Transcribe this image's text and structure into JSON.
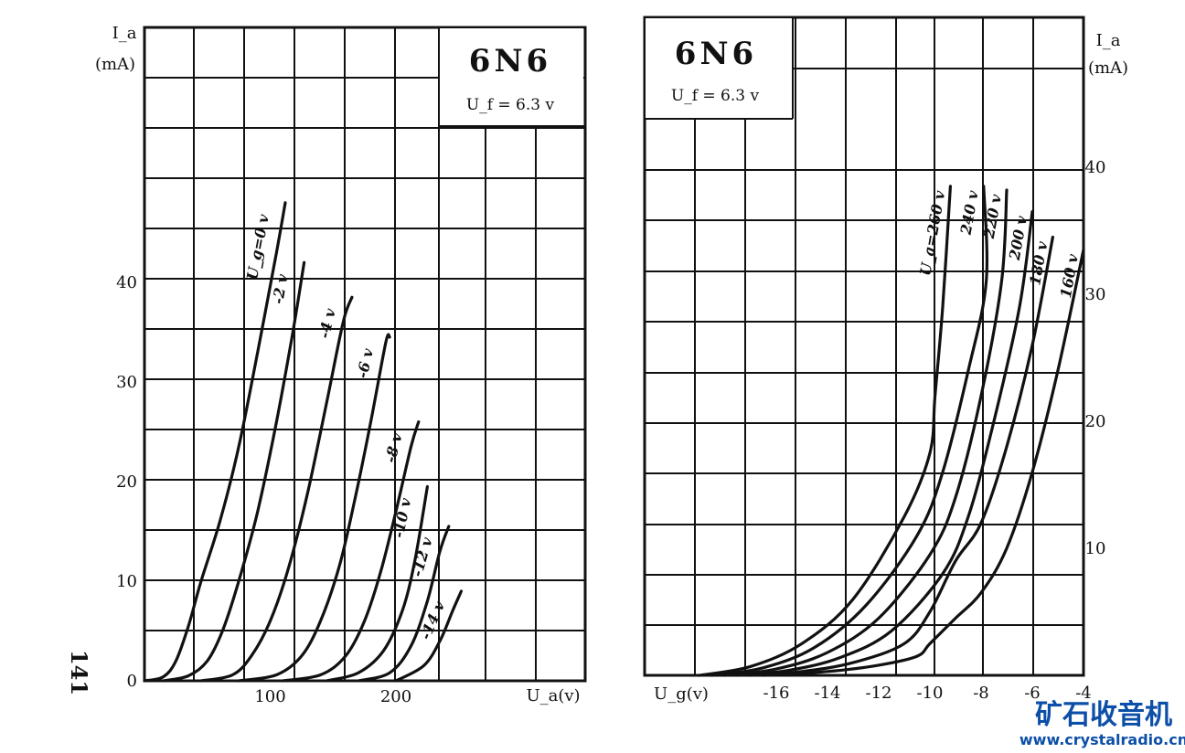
{
  "chart_data": [
    {
      "type": "line",
      "title": "6N6",
      "subtitle": "U_f = 6.3 v",
      "xlabel": "U_a(v)",
      "ylabel_symbol": "I_a",
      "ylabel_unit": "(mA)",
      "x_ticks": [
        "100",
        "200"
      ],
      "y_ticks": [
        "0",
        "10",
        "20",
        "30",
        "40"
      ],
      "xlim": [
        0,
        350
      ],
      "ylim": [
        0,
        55
      ],
      "grid": true,
      "series": [
        {
          "name": "U_g=0 v",
          "label": "U_g=0 v",
          "points": [
            [
              0,
              0
            ],
            [
              15,
              0.4
            ],
            [
              25,
              2
            ],
            [
              35,
              5.5
            ],
            [
              45,
              10
            ],
            [
              60,
              16
            ],
            [
              75,
              23.5
            ],
            [
              90,
              33
            ],
            [
              105,
              43
            ],
            [
              112,
              48
            ]
          ]
        },
        {
          "name": "-2 v",
          "label": "-2 v",
          "points": [
            [
              15,
              0
            ],
            [
              35,
              0.5
            ],
            [
              50,
              2
            ],
            [
              62,
              5
            ],
            [
              75,
              10
            ],
            [
              90,
              17
            ],
            [
              105,
              26
            ],
            [
              118,
              35
            ],
            [
              127,
              42
            ]
          ]
        },
        {
          "name": "-4 v",
          "label": "-4 v",
          "points": [
            [
              45,
              0
            ],
            [
              70,
              0.6
            ],
            [
              85,
              2.5
            ],
            [
              100,
              6
            ],
            [
              115,
              11.5
            ],
            [
              130,
              19
            ],
            [
              145,
              28
            ],
            [
              158,
              36
            ],
            [
              165,
              38.5
            ]
          ]
        },
        {
          "name": "-6 v",
          "label": "-6 v",
          "points": [
            [
              75,
              0
            ],
            [
              105,
              0.6
            ],
            [
              125,
              2.5
            ],
            [
              140,
              6
            ],
            [
              155,
              11.5
            ],
            [
              167,
              18
            ],
            [
              180,
              26
            ],
            [
              192,
              34
            ],
            [
              195,
              34.5
            ]
          ]
        },
        {
          "name": "-8 v",
          "label": "-8 v",
          "points": [
            [
              110,
              0
            ],
            [
              140,
              0.6
            ],
            [
              160,
              2.5
            ],
            [
              175,
              6
            ],
            [
              188,
              11
            ],
            [
              200,
              17
            ],
            [
              212,
              23.5
            ],
            [
              218,
              26
            ]
          ]
        },
        {
          "name": "-10 v",
          "label": "-10 v",
          "points": [
            [
              145,
              0
            ],
            [
              170,
              0.8
            ],
            [
              190,
              3
            ],
            [
              205,
              7
            ],
            [
              215,
              12
            ],
            [
              225,
              19.5
            ]
          ]
        },
        {
          "name": "-12 v",
          "label": "-12 v",
          "points": [
            [
              170,
              0
            ],
            [
              195,
              0.8
            ],
            [
              212,
              3.5
            ],
            [
              225,
              8
            ],
            [
              235,
              13
            ],
            [
              242,
              15.5
            ]
          ]
        },
        {
          "name": "-14 v",
          "label": "-14 v",
          "points": [
            [
              200,
              0
            ],
            [
              222,
              1.5
            ],
            [
              235,
              4
            ],
            [
              245,
              7
            ],
            [
              252,
              9
            ]
          ]
        }
      ]
    },
    {
      "type": "line",
      "title": "6N6",
      "subtitle": "U_f = 6.3 v",
      "xlabel": "U_g(v)",
      "ylabel_symbol": "I_a",
      "ylabel_unit": "(mA)",
      "x_ticks": [
        "-16",
        "-14",
        "-12",
        "-10",
        "-8",
        "-6",
        "-4"
      ],
      "y_ticks": [
        "10",
        "20",
        "30",
        "40"
      ],
      "xlim": [
        -21,
        -4
      ],
      "ylim": [
        0,
        51
      ],
      "grid": true,
      "series": [
        {
          "name": "U_a=260 v",
          "label": "U_a=260 v",
          "points": [
            [
              -19,
              0
            ],
            [
              -17,
              0.7
            ],
            [
              -15,
              2.5
            ],
            [
              -13,
              6
            ],
            [
              -11,
              12.5
            ],
            [
              -10,
              17.5
            ],
            [
              -9.8,
              22
            ],
            [
              -9.5,
              29
            ],
            [
              -9.2,
              38.5
            ]
          ]
        },
        {
          "name": "240 v",
          "label": "240 v",
          "points": [
            [
              -18.5,
              0
            ],
            [
              -16.5,
              0.6
            ],
            [
              -14.5,
              2.2
            ],
            [
              -12.5,
              5.5
            ],
            [
              -10.5,
              11
            ],
            [
              -9.5,
              16
            ],
            [
              -8.5,
              24
            ],
            [
              -7.8,
              31
            ],
            [
              -7.9,
              38.5
            ]
          ]
        },
        {
          "name": "220 v",
          "label": "220 v",
          "points": [
            [
              -18,
              0
            ],
            [
              -16,
              0.5
            ],
            [
              -14,
              1.8
            ],
            [
              -12,
              4.5
            ],
            [
              -10,
              9.5
            ],
            [
              -9,
              14
            ],
            [
              -8,
              22
            ],
            [
              -7.2,
              31
            ],
            [
              -7,
              38.2
            ]
          ]
        },
        {
          "name": "200 v",
          "label": "200 v",
          "points": [
            [
              -17.5,
              0
            ],
            [
              -15.5,
              0.4
            ],
            [
              -13.5,
              1.4
            ],
            [
              -11.5,
              3.5
            ],
            [
              -9.5,
              8
            ],
            [
              -8.5,
              12.5
            ],
            [
              -7.5,
              20
            ],
            [
              -6.5,
              29
            ],
            [
              -6,
              36.5
            ]
          ]
        },
        {
          "name": "180 v",
          "label": "180 v",
          "points": [
            [
              -17,
              0
            ],
            [
              -15,
              0.3
            ],
            [
              -13,
              1
            ],
            [
              -11,
              2.5
            ],
            [
              -10,
              5
            ],
            [
              -9,
              9
            ],
            [
              -8,
              12
            ],
            [
              -7,
              18
            ],
            [
              -6,
              26
            ],
            [
              -5.2,
              34.5
            ]
          ]
        },
        {
          "name": "160 v",
          "label": "160 v",
          "points": [
            [
              -16.5,
              0
            ],
            [
              -14,
              0.3
            ],
            [
              -12,
              0.8
            ],
            [
              -10.5,
              1.5
            ],
            [
              -10,
              2.5
            ],
            [
              -9,
              4.5
            ],
            [
              -8,
              6.5
            ],
            [
              -7,
              10
            ],
            [
              -6,
              16
            ],
            [
              -5,
              24
            ],
            [
              -4,
              33.5
            ]
          ]
        }
      ]
    }
  ],
  "page_number": "141",
  "watermark": {
    "chinese": "矿石收音机",
    "url": "www.crystalradio.cn",
    "color": "#0d4fa8"
  }
}
